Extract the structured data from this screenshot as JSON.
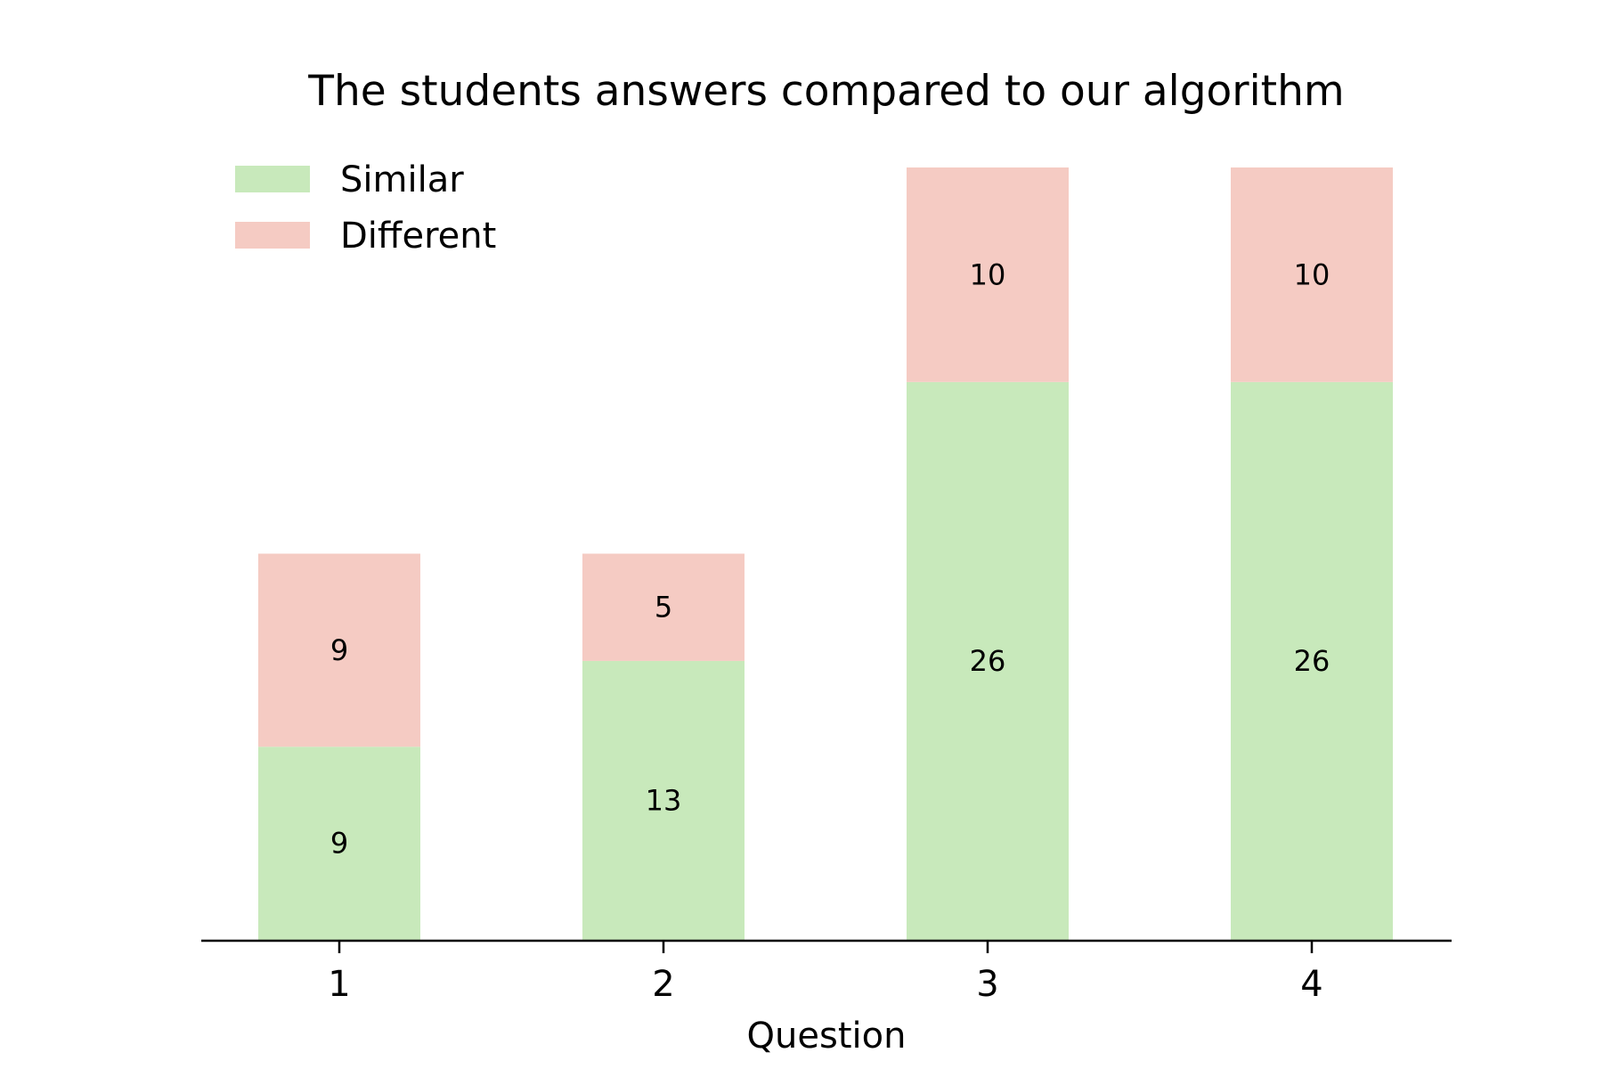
{
  "chart_data": {
    "type": "bar",
    "stacked": true,
    "title": "The students answers compared to our algorithm",
    "xlabel": "Question",
    "ylabel": "",
    "categories": [
      "1",
      "2",
      "3",
      "4"
    ],
    "series": [
      {
        "name": "Similar",
        "values": [
          9,
          13,
          26,
          26
        ],
        "color": "#c8e9bb"
      },
      {
        "name": "Different",
        "values": [
          9,
          5,
          10,
          10
        ],
        "color": "#f5cbc3"
      }
    ],
    "ylim": [
      0,
      36
    ],
    "grid": false,
    "legend_position": "top-left"
  }
}
